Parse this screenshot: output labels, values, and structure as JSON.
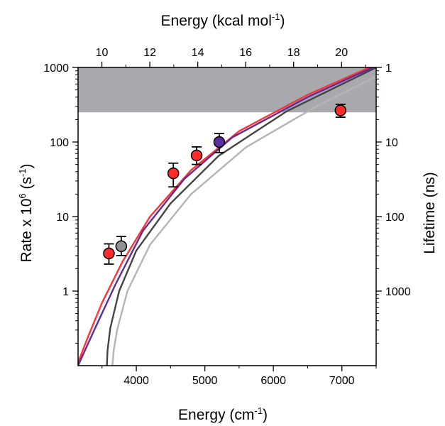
{
  "chart_data": {
    "type": "scatter",
    "title": "",
    "axes": {
      "bottom": {
        "label": "Energy (cm",
        "label_superscript": "-1",
        "label_suffix": ")",
        "range": [
          3150,
          7500
        ],
        "ticks": [
          4000,
          5000,
          6000,
          7000
        ],
        "tick_labels": [
          "4000",
          "5000",
          "6000",
          "7000"
        ]
      },
      "top": {
        "label": "Energy (kcal mol",
        "label_superscript": "-1",
        "label_suffix": ")",
        "ticks": [
          10,
          12,
          14,
          16,
          18,
          20
        ],
        "tick_labels": [
          "10",
          "12",
          "14",
          "16",
          "18",
          "20"
        ],
        "cm_per_unit": 349.75
      },
      "left": {
        "label_prefix": "Rate x 10",
        "label_superscript": "6",
        "label_unit": " (s",
        "label_unit_superscript": "-1",
        "label_suffix": ")",
        "scale": "log",
        "range": [
          0.1,
          1000
        ],
        "ticks": [
          1,
          10,
          100,
          1000
        ],
        "tick_labels": [
          "1",
          "10",
          "100",
          "1000"
        ]
      },
      "right": {
        "label": "Lifetime (ns)",
        "scale": "log",
        "ticks": [
          1,
          10,
          100,
          1000
        ],
        "tick_labels": [
          "1",
          "10",
          "100",
          "1000"
        ]
      }
    },
    "shaded_region": {
      "y_from": 250,
      "y_to": 1000,
      "color": "#a7a9ad"
    },
    "series": [
      {
        "color": "#ff2a2a",
        "points": [
          {
            "x": 3600,
            "y": 3.2,
            "y_low": 2.3,
            "y_high": 4.3
          },
          {
            "x": 4540,
            "y": 38,
            "y_low": 25,
            "y_high": 52
          },
          {
            "x": 4880,
            "y": 66,
            "y_low": 50,
            "y_high": 86
          },
          {
            "x": 6980,
            "y": 265,
            "y_low": 215,
            "y_high": 320
          }
        ]
      },
      {
        "color": "#8f9093",
        "points": [
          {
            "x": 3780,
            "y": 4.0,
            "y_low": 3.0,
            "y_high": 5.4
          }
        ]
      },
      {
        "color": "#5a2da0",
        "points": [
          {
            "x": 5210,
            "y": 100,
            "y_low": 72,
            "y_high": 130
          }
        ]
      }
    ],
    "curves": [
      {
        "color": "#ff3333",
        "points": [
          [
            3150,
            0.11
          ],
          [
            3300,
            0.25
          ],
          [
            3500,
            0.7
          ],
          [
            3800,
            2.5
          ],
          [
            4200,
            10
          ],
          [
            4800,
            42
          ],
          [
            5500,
            140
          ],
          [
            6500,
            430
          ],
          [
            7500,
            1100
          ]
        ]
      },
      {
        "color": "#5b2d9f",
        "points": [
          [
            3150,
            0.1
          ],
          [
            3250,
            0.16
          ],
          [
            3400,
            0.32
          ],
          [
            3700,
            1.25
          ],
          [
            4100,
            6.5
          ],
          [
            4700,
            32
          ],
          [
            5400,
            115
          ],
          [
            6500,
            400
          ],
          [
            7500,
            1050
          ]
        ]
      },
      {
        "color": "#444444",
        "points": [
          [
            3570,
            0.1
          ],
          [
            3580,
            0.16
          ],
          [
            3620,
            0.32
          ],
          [
            3750,
            1.0
          ],
          [
            4000,
            3.5
          ],
          [
            4500,
            15
          ],
          [
            5200,
            65
          ],
          [
            6200,
            260
          ],
          [
            7500,
            1000
          ]
        ]
      },
      {
        "color": "#b4b4b4",
        "points": [
          [
            3650,
            0.1
          ],
          [
            3670,
            0.16
          ],
          [
            3720,
            0.3
          ],
          [
            3870,
            1.0
          ],
          [
            4200,
            4.2
          ],
          [
            4800,
            20
          ],
          [
            5600,
            85
          ],
          [
            6600,
            290
          ],
          [
            7500,
            760
          ]
        ]
      }
    ]
  }
}
